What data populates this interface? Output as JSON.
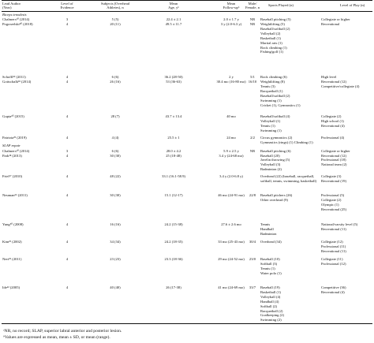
{
  "headers": {
    "lead_author": "Lead Author\n(Year)",
    "level": "Level of\nEvidence",
    "subjects": "Subjects (Overhead\nAthletes), n",
    "age": "Mean\nAge, yᵇ",
    "followup": "Mean\nFollow-upᵇ",
    "sex": "Male/\nFemale, n",
    "sports": "Sports Played (n)",
    "play": "Level of Play (n)"
  },
  "sections": [
    {
      "title": "Biceps tenodesis",
      "rows": [
        {
          "author": "Chalmers¹⁰ (2014)",
          "level": "3",
          "subjects": "5 (5)",
          "age": "22.4 ± 2.1",
          "followup": "2.0 ± 1.7 y",
          "sex": "NR",
          "sports": [
            "Baseball pitching (5)"
          ],
          "play": [
            "Collegiate or higher"
          ]
        },
        {
          "author": "Pogorzelski⁴⁰ (2018)",
          "level": "4",
          "subjects": "20 (11)",
          "age": "49.5 ± 11.7",
          "followup": "3 y (2.0-6.3 y)",
          "sex": "NR",
          "sports": [
            "Weightlifting (5)",
            "Baseball/softball (2)",
            "Volleyball (2)",
            "Basketball (1)",
            "Martial arts (1)",
            "Rock climbing (1)",
            "Fishing/golf (1)"
          ],
          "play": [
            "Recreational"
          ]
        },
        {
          "author": "Schoffl⁴³ (2011)",
          "level": "4",
          "subjects": "6 (6)",
          "age": "36.2 (28-50)",
          "followup": "2 y",
          "sex": "5/1",
          "sports": [
            "Rock climbing (6)"
          ],
          "play": [
            "High level"
          ]
        },
        {
          "author": "Gottschalk¹⁸ (2014)",
          "level": "4",
          "subjects": "26 (16)",
          "age": "53 (36-63)",
          "followup": "30.4 mo (16-80 mo)",
          "sex": "16/10",
          "sports": [
            "Weightlifting (8)",
            "Tennis (3)",
            "Racquetball (1)",
            "Baseball/softball (2)",
            "Swimming (1)",
            "Cricket (1), Gymnastics (1)"
          ],
          "play": [
            "Recreational (12)",
            "Competitive/collegiate (4)"
          ]
        },
        {
          "author": "Gupta²⁰ (2015)",
          "level": "4",
          "subjects": "28 (7)",
          "age": "43.7 ± 13.4",
          "followup": "40 mo",
          "sex": "",
          "sports": [
            "Baseball/softball (4)",
            "Volleyball (1)",
            "Tennis (1)",
            "Swimming (1)"
          ],
          "play": [
            "Collegiate (2)",
            "High school (1)",
            "Recreational (4)"
          ]
        },
        {
          "author": "Patriota³⁹ (2019)",
          "level": "4",
          "subjects": "4 (4)",
          "age": "25.5 ± 1",
          "followup": "24 mo",
          "sex": "2/2",
          "sports": [
            "Circus gymnastics (2)",
            "Gymnastics (rings) (1) Climbing (1)"
          ],
          "play": [
            "Professional (4)"
          ]
        }
      ]
    },
    {
      "title": "SLAP repair",
      "rows": [
        {
          "author": "Chalmers¹⁰ (2014)",
          "level": "3",
          "subjects": "6 (6)",
          "age": "28.0 ± 4.2",
          "followup": "5.9 ± 2.5 y",
          "sex": "NR",
          "sports": [
            "Baseball pitching (6)"
          ],
          "play": [
            "Collegiate or higher"
          ]
        },
        {
          "author": "Park³⁸ (2013)",
          "level": "4",
          "subjects": "30 (30)",
          "age": "25 (18-48)",
          "followup": "3.4 y (24-68 mo)",
          "sex": "",
          "sports": [
            "Baseball (20)",
            "Javelin throwing (5)",
            "Volleyball (3)",
            "Badminton (2)"
          ],
          "play": [
            "Recreational (12)",
            "Professional (18)",
            "National team (2)"
          ]
        },
        {
          "author": "Friel¹⁷ (2010)",
          "level": "4",
          "subjects": "48 (22)",
          "age": "33.1 (16.1-58.9)",
          "followup": "3.4 y (2.0-6.8 y)",
          "sex": "",
          "sports": [
            "Overhead (22) (baseball, racquetball,",
            "softball, tennis, swimming, basketball)"
          ],
          "play": [
            "Collegiate (3)",
            "Recreational (19)"
          ]
        },
        {
          "author": "Neuman³⁶ (2011)",
          "level": "4",
          "subjects": "30 (30)",
          "age": "15.1 (12-17)",
          "followup": "46 mo (24-91 mo)",
          "sex": "22/8",
          "sports": [
            "Baseball pitchers (26)",
            "Other overhead (9)"
          ],
          "play": [
            "Professional (5)",
            "Collegiate (2)",
            "Olympic (1)",
            "Recreational (25)"
          ]
        },
        {
          "author": "Yung⁵⁰ (2008)",
          "level": "4",
          "subjects": "16 (16)",
          "age": "24.2 (15-38)",
          "followup": "27.6 ± 2.6 mo",
          "sex": "",
          "sports": [
            "Tennis",
            "Handball",
            "Badminton"
          ],
          "play": [
            "National/varsity level (5)",
            "Recreational (11)"
          ]
        },
        {
          "author": "Kim²⁵ (2002)",
          "level": "4",
          "subjects": "34 (34)",
          "age": "24.2 (18-35)",
          "followup": "33 mo (25-43 mo)",
          "sex": "30/4",
          "sports": [
            "Overhead (34)"
          ],
          "play": [
            "Collegiate (12)",
            "Professional (11)",
            "Recreational (11)"
          ]
        },
        {
          "author": "Neri³⁵ (2011)",
          "level": "4",
          "subjects": "23 (23)",
          "age": "23.3 (18-36)",
          "followup": "29 mo (24-52 mo)",
          "sex": "23/0",
          "sports": [
            "Baseball (10)",
            "Softball (3)",
            "Tennis (1)",
            "Water polo (1)"
          ],
          "play": [
            "Collegiate (11)",
            "Professional (12)"
          ]
        },
        {
          "author": "Ide²² (2005)",
          "level": "4",
          "subjects": "40 (40)",
          "age": "26 (17-38)",
          "followup": "41 mo (24-69 mo)",
          "sex": "33/7",
          "sports": [
            "Baseball (19)",
            "Basketball (1)",
            "Volleyball (4)",
            "Handball (4)",
            "Softball (2)",
            "Racquetball (2)",
            "Goalkeeping (2)",
            "Swimming (2)"
          ],
          "play": [
            "Competitive (36)",
            "Recreational (4)"
          ]
        }
      ]
    }
  ],
  "footnotes": [
    "ᵃNR, no record; SLAP, superior labral anterior and posterior lesion.",
    "ᵇValues are expressed as mean, mean ± SD, or mean (range)."
  ]
}
